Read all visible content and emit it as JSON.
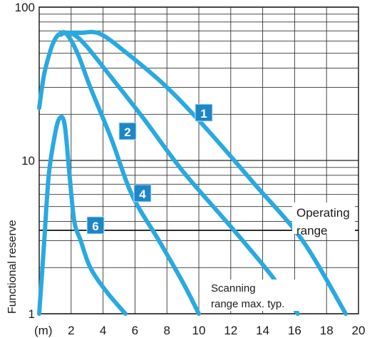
{
  "chart_data": {
    "type": "line",
    "xlabel": "(m)",
    "ylabel": "Functional reserve",
    "xlim": [
      0,
      20
    ],
    "ylim": [
      1,
      100
    ],
    "y_scale": "log",
    "x_ticks": [
      2,
      4,
      6,
      8,
      10,
      12,
      14,
      16,
      18,
      20
    ],
    "y_ticks": [
      1,
      10,
      100
    ],
    "y_tick_labels": [
      "1",
      "10",
      "100"
    ],
    "grid": true,
    "reference_line": {
      "y": 3.5
    },
    "annotations": {
      "operating_line1": "Operating",
      "operating_line2": "range",
      "scanning_line1": "Scanning",
      "scanning_line2": "range max. typ."
    },
    "curve_color": "#29a9e1",
    "badge_color": "#1d86c9",
    "series": [
      {
        "name": "1",
        "x": [
          1.3,
          1.8,
          2.6,
          3.8,
          5.5,
          8.0,
          10.5,
          13.5,
          16.5,
          19.2
        ],
        "y": [
          67,
          68,
          68,
          67,
          50,
          30,
          16,
          7,
          3,
          1
        ]
      },
      {
        "name": "2",
        "x": [
          1.35,
          1.6,
          2.2,
          3.0,
          4.5,
          6.5,
          9.0,
          12.0,
          14.5,
          16.2
        ],
        "y": [
          66,
          68,
          66,
          55,
          35,
          19,
          8.5,
          3.7,
          1.8,
          1
        ]
      },
      {
        "name": "4",
        "x": [
          0.0,
          0.3,
          0.7,
          1.0,
          1.3,
          1.7,
          2.4,
          3.2,
          4.5,
          5.8,
          7.5,
          9.0,
          10.0
        ],
        "y": [
          22,
          36,
          52,
          62,
          67,
          67,
          50,
          30,
          14,
          6,
          3,
          1.6,
          1
        ]
      },
      {
        "name": "6",
        "x": [
          0.0,
          0.3,
          0.6,
          1.0,
          1.3,
          1.6,
          1.9,
          2.2,
          2.6,
          3.2,
          4.2,
          5.4
        ],
        "y": [
          1,
          2.8,
          8,
          15,
          19,
          17,
          8,
          4,
          3,
          2,
          1.4,
          1
        ]
      }
    ]
  }
}
